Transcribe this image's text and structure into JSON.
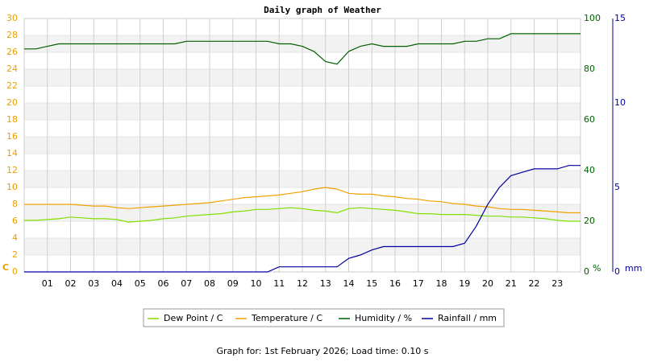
{
  "chart_data": {
    "type": "line",
    "title": "Daily graph of Weather",
    "x": [
      0,
      0.5,
      1,
      1.5,
      2,
      2.5,
      3,
      3.5,
      4,
      4.5,
      5,
      5.5,
      6,
      6.5,
      7,
      7.5,
      8,
      8.5,
      9,
      9.5,
      10,
      10.5,
      11,
      11.5,
      12,
      12.5,
      13,
      13.5,
      14,
      14.5,
      15,
      15.5,
      16,
      16.5,
      17,
      17.5,
      18,
      18.5,
      19,
      19.5,
      20,
      20.5,
      21,
      21.5,
      22,
      22.5,
      23,
      23.5,
      24
    ],
    "xlim": [
      0,
      24
    ],
    "xticks": [
      {
        "value": 1,
        "label": "01"
      },
      {
        "value": 2,
        "label": "02"
      },
      {
        "value": 3,
        "label": "03"
      },
      {
        "value": 4,
        "label": "04"
      },
      {
        "value": 5,
        "label": "05"
      },
      {
        "value": 6,
        "label": "06"
      },
      {
        "value": 7,
        "label": "07"
      },
      {
        "value": 8,
        "label": "08"
      },
      {
        "value": 9,
        "label": "09"
      },
      10,
      11,
      12,
      13,
      14,
      15,
      16,
      17,
      18,
      19,
      20,
      21,
      22,
      23
    ],
    "ylim": [
      0,
      30
    ],
    "yticks": [
      0,
      2,
      4,
      6,
      8,
      10,
      12,
      14,
      16,
      18,
      20,
      22,
      24,
      26,
      28,
      30
    ],
    "ylabel": "C",
    "ycolor": "#e8a000",
    "y2lim": [
      0,
      100
    ],
    "y2ticks": [
      0,
      20,
      40,
      60,
      80,
      100
    ],
    "y2label": "%",
    "y2color": "#006000",
    "y3lim": [
      0,
      15
    ],
    "y3ticks": [
      0,
      5,
      10,
      15
    ],
    "y3label": "mm",
    "y3color": "#0000a0",
    "grid": true,
    "series": [
      {
        "name": "Dew Point / C",
        "color": "#80e000",
        "values": [
          6.1,
          6.1,
          6.2,
          6.3,
          6.5,
          6.4,
          6.3,
          6.3,
          6.2,
          5.9,
          6.0,
          6.1,
          6.3,
          6.4,
          6.6,
          6.7,
          6.8,
          6.9,
          7.1,
          7.2,
          7.4,
          7.4,
          7.5,
          7.6,
          7.5,
          7.3,
          7.2,
          7.0,
          7.5,
          7.6,
          7.5,
          7.4,
          7.3,
          7.1,
          6.9,
          6.9,
          6.8,
          6.8,
          6.8,
          6.7,
          6.6,
          6.6,
          6.5,
          6.5,
          6.4,
          6.3,
          6.1,
          6.0,
          6.0
        ]
      },
      {
        "name": "Temperature / C",
        "color": "#f0a000",
        "values": [
          8.0,
          8.0,
          8.0,
          8.0,
          8.0,
          7.9,
          7.8,
          7.8,
          7.6,
          7.5,
          7.6,
          7.7,
          7.8,
          7.9,
          8.0,
          8.1,
          8.2,
          8.4,
          8.6,
          8.8,
          8.9,
          9.0,
          9.1,
          9.3,
          9.5,
          9.8,
          10.0,
          9.8,
          9.3,
          9.2,
          9.2,
          9.0,
          8.9,
          8.7,
          8.6,
          8.4,
          8.3,
          8.1,
          8.0,
          7.8,
          7.7,
          7.5,
          7.4,
          7.4,
          7.3,
          7.2,
          7.1,
          7.0,
          7.0
        ]
      },
      {
        "name": "Humidity / %",
        "color": "#006000",
        "axis": "y2",
        "values": [
          88,
          88,
          89,
          90,
          90,
          90,
          90,
          90,
          90,
          90,
          90,
          90,
          90,
          90,
          91,
          91,
          91,
          91,
          91,
          91,
          91,
          91,
          90,
          90,
          89,
          87,
          83,
          82,
          87,
          89,
          90,
          89,
          89,
          89,
          90,
          90,
          90,
          90,
          91,
          91,
          92,
          92,
          94,
          94,
          94,
          94,
          94,
          94,
          94
        ]
      },
      {
        "name": "Rainfall / mm",
        "color": "#0000a0",
        "axis": "y3",
        "values": [
          0,
          0,
          0,
          0,
          0,
          0,
          0,
          0,
          0,
          0,
          0,
          0,
          0,
          0,
          0,
          0,
          0,
          0,
          0,
          0,
          0,
          0,
          0.3,
          0.3,
          0.3,
          0.3,
          0.3,
          0.3,
          0.8,
          1.0,
          1.3,
          1.5,
          1.5,
          1.5,
          1.5,
          1.5,
          1.5,
          1.5,
          1.7,
          2.7,
          4.0,
          5.0,
          5.7,
          5.9,
          6.1,
          6.1,
          6.1,
          6.3,
          6.3
        ]
      }
    ],
    "footer": "Graph for: 1st February 2026; Load time: 0.10 s"
  }
}
